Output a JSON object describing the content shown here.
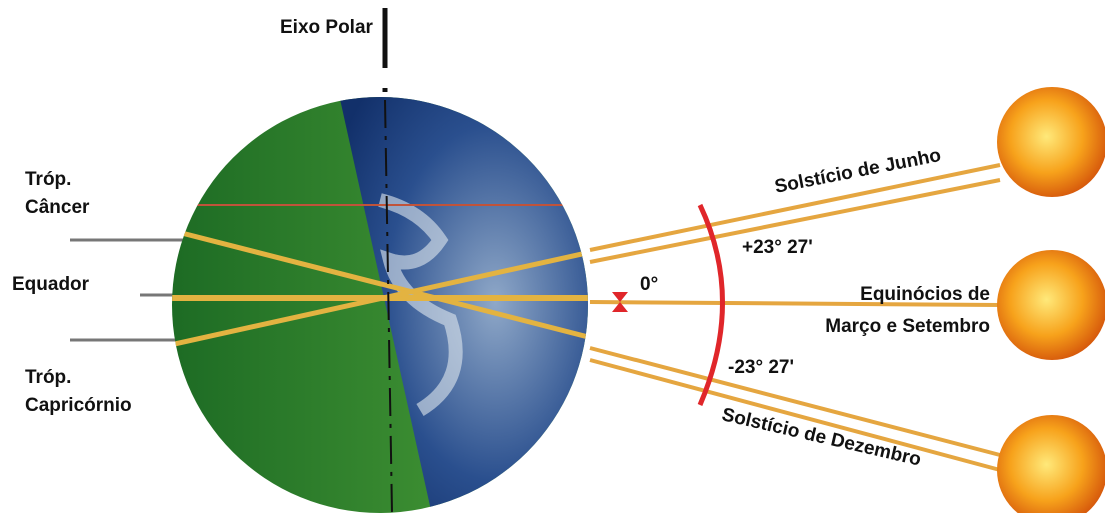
{
  "labels": {
    "eixo_polar": "Eixo Polar",
    "trop_cancer": [
      "Tróp.",
      "Câncer"
    ],
    "equador": "Equador",
    "trop_capricornio": [
      "Tróp.",
      "Capricórnio"
    ],
    "solsticio_junho": "Solstício de Junho",
    "mais_angulo": "+23° 27'",
    "zero": "0°",
    "equinocios": [
      "Equinócios de",
      "Março e Setembro"
    ],
    "menos_angulo": "-23° 27'",
    "solsticio_dezembro": "Solstício de Dezembro"
  }
}
